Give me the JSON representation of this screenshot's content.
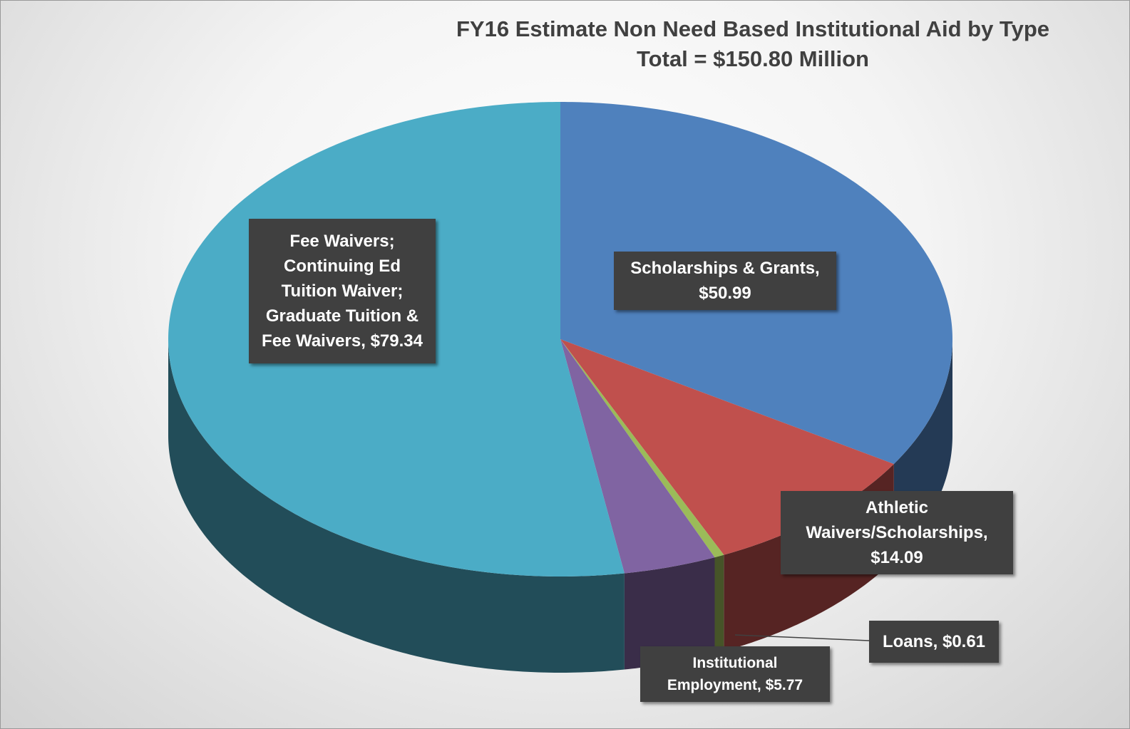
{
  "chart_data": {
    "type": "pie3d",
    "title": "FY16 Estimate Non Need Based Institutional Aid by Type",
    "subtitle": "Total = $150.80 Million",
    "categories": [
      "Scholarships & Grants,",
      "Athletic Waivers/Scholarships,",
      "Loans,",
      "Institutional Employment,",
      "Fee Waivers; Continuing Ed Tuition Waiver; Graduate Tuition & Fee Waivers,"
    ],
    "values": [
      50.99,
      14.09,
      0.61,
      5.77,
      79.34
    ],
    "value_labels": [
      "$50.99",
      "$14.09",
      "$0.61",
      "$5.77",
      "$79.34"
    ],
    "colors": [
      "#4f81bd",
      "#c0504d",
      "#9bbb59",
      "#8064a2",
      "#4bacc6"
    ]
  }
}
